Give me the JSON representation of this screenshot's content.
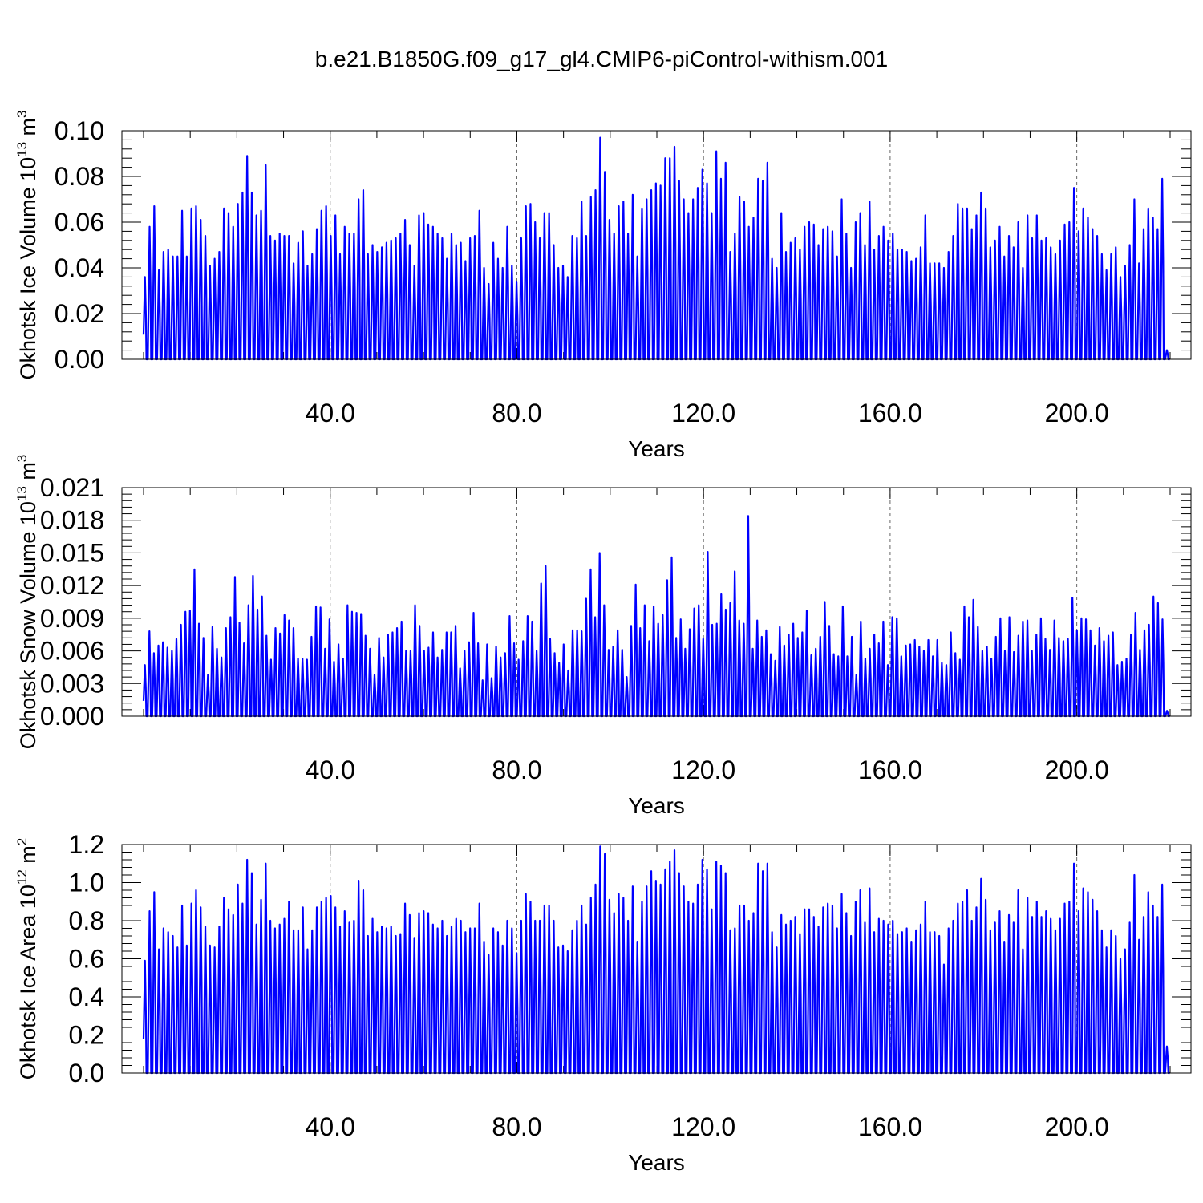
{
  "title": "b.e21.B1850G.f09_g17_gl4.CMIP6-piControl-withism.001",
  "line_color": "#0000ff",
  "chart_data": [
    {
      "type": "line",
      "title": "",
      "ylabel": "Okhotsk Ice Volume 10",
      "ylabel_exp": "13",
      "ylabel_unit": "m",
      "ylabel_unit_exp": "3",
      "xlabel": "Years",
      "xlim": [
        0,
        220
      ],
      "ylim": [
        0,
        0.1
      ],
      "xticks": [
        40,
        80,
        120,
        160,
        200
      ],
      "xtick_labels": [
        "40.0",
        "80.0",
        "120.0",
        "160.0",
        "200.0"
      ],
      "yticks": [
        0,
        0.02,
        0.04,
        0.06,
        0.08,
        0.1
      ],
      "ytick_labels": [
        "0.00",
        "0.02",
        "0.04",
        "0.06",
        "0.08",
        "0.10"
      ],
      "grid": "vertical dashed at labeled years",
      "annual_min": 0,
      "annual_maxima": [
        0.036,
        0.058,
        0.067,
        0.039,
        0.047,
        0.048,
        0.045,
        0.045,
        0.065,
        0.045,
        0.066,
        0.067,
        0.061,
        0.054,
        0.041,
        0.044,
        0.047,
        0.066,
        0.064,
        0.058,
        0.068,
        0.073,
        0.089,
        0.073,
        0.063,
        0.065,
        0.085,
        0.054,
        0.052,
        0.055,
        0.054,
        0.054,
        0.042,
        0.051,
        0.056,
        0.041,
        0.046,
        0.057,
        0.065,
        0.067,
        0.054,
        0.063,
        0.046,
        0.058,
        0.055,
        0.055,
        0.07,
        0.074,
        0.046,
        0.05,
        0.047,
        0.049,
        0.051,
        0.052,
        0.053,
        0.055,
        0.061,
        0.05,
        0.041,
        0.063,
        0.064,
        0.059,
        0.058,
        0.055,
        0.053,
        0.044,
        0.055,
        0.05,
        0.051,
        0.043,
        0.053,
        0.054,
        0.065,
        0.04,
        0.033,
        0.051,
        0.044,
        0.04,
        0.058,
        0.041,
        0.034,
        0.053,
        0.067,
        0.068,
        0.06,
        0.053,
        0.064,
        0.064,
        0.05,
        0.04,
        0.041,
        0.036,
        0.054,
        0.053,
        0.069,
        0.054,
        0.071,
        0.074,
        0.097,
        0.082,
        0.061,
        0.055,
        0.067,
        0.069,
        0.055,
        0.072,
        0.045,
        0.066,
        0.07,
        0.074,
        0.077,
        0.076,
        0.088,
        0.088,
        0.093,
        0.078,
        0.07,
        0.064,
        0.07,
        0.075,
        0.083,
        0.077,
        0.064,
        0.091,
        0.079,
        0.086,
        0.047,
        0.055,
        0.071,
        0.069,
        0.058,
        0.062,
        0.079,
        0.078,
        0.086,
        0.044,
        0.04,
        0.064,
        0.047,
        0.051,
        0.053,
        0.048,
        0.058,
        0.06,
        0.059,
        0.05,
        0.057,
        0.058,
        0.056,
        0.045,
        0.07,
        0.055,
        0.04,
        0.06,
        0.064,
        0.05,
        0.069,
        0.048,
        0.054,
        0.058,
        0.052,
        0.055,
        0.048,
        0.048,
        0.047,
        0.043,
        0.044,
        0.049,
        0.063,
        0.042,
        0.042,
        0.042,
        0.04,
        0.047,
        0.054,
        0.068,
        0.066,
        0.066,
        0.057,
        0.063,
        0.073,
        0.066,
        0.049,
        0.052,
        0.058,
        0.045,
        0.054,
        0.049,
        0.06,
        0.04,
        0.063,
        0.053,
        0.063,
        0.052,
        0.053,
        0.049,
        0.046,
        0.052,
        0.059,
        0.06,
        0.075,
        0.056,
        0.066,
        0.062,
        0.057,
        0.054,
        0.046,
        0.039,
        0.046,
        0.049,
        0.036,
        0.041,
        0.05,
        0.07,
        0.042,
        0.057,
        0.066,
        0.062,
        0.057,
        0.079,
        0.004
      ]
    },
    {
      "type": "line",
      "title": "",
      "ylabel": "Okhotsk Snow Volume 10",
      "ylabel_exp": "13",
      "ylabel_unit": "m",
      "ylabel_unit_exp": "3",
      "xlabel": "Years",
      "xlim": [
        0,
        220
      ],
      "ylim": [
        0,
        0.021
      ],
      "xticks": [
        40,
        80,
        120,
        160,
        200
      ],
      "xtick_labels": [
        "40.0",
        "80.0",
        "120.0",
        "160.0",
        "200.0"
      ],
      "yticks": [
        0,
        0.003,
        0.006,
        0.009,
        0.012,
        0.015,
        0.018,
        0.021
      ],
      "ytick_labels": [
        "0.000",
        "0.003",
        "0.006",
        "0.009",
        "0.012",
        "0.015",
        "0.018",
        "0.021"
      ],
      "grid": "vertical dashed at labeled years",
      "annual_min": 0,
      "annual_maxima": [
        0.0047,
        0.0078,
        0.0058,
        0.0065,
        0.0068,
        0.0063,
        0.006,
        0.0071,
        0.0084,
        0.0096,
        0.0097,
        0.0135,
        0.0085,
        0.0072,
        0.0038,
        0.0082,
        0.0062,
        0.0054,
        0.0081,
        0.0091,
        0.0128,
        0.0086,
        0.0067,
        0.0102,
        0.0129,
        0.0098,
        0.011,
        0.0074,
        0.0052,
        0.0081,
        0.0076,
        0.0093,
        0.0088,
        0.0081,
        0.0053,
        0.0053,
        0.0052,
        0.0073,
        0.0101,
        0.01,
        0.0062,
        0.0089,
        0.005,
        0.0066,
        0.0053,
        0.0102,
        0.0096,
        0.0095,
        0.0094,
        0.0074,
        0.0062,
        0.0038,
        0.0072,
        0.0054,
        0.0075,
        0.0077,
        0.0081,
        0.0087,
        0.006,
        0.006,
        0.0102,
        0.0083,
        0.006,
        0.0063,
        0.0077,
        0.0054,
        0.0061,
        0.0077,
        0.0077,
        0.0083,
        0.0044,
        0.006,
        0.0068,
        0.0095,
        0.0067,
        0.0033,
        0.0066,
        0.0035,
        0.0064,
        0.0054,
        0.0058,
        0.0092,
        0.0067,
        0.0052,
        0.0069,
        0.0092,
        0.0087,
        0.006,
        0.0122,
        0.0138,
        0.0071,
        0.0058,
        0.0049,
        0.0066,
        0.0042,
        0.0079,
        0.0079,
        0.0078,
        0.0108,
        0.0135,
        0.0091,
        0.015,
        0.0102,
        0.0061,
        0.0064,
        0.0079,
        0.0061,
        0.0036,
        0.0083,
        0.0121,
        0.0081,
        0.0102,
        0.0069,
        0.0101,
        0.0085,
        0.0093,
        0.0125,
        0.0146,
        0.0072,
        0.0089,
        0.0062,
        0.008,
        0.0099,
        0.0102,
        0.0071,
        0.0151,
        0.0084,
        0.0085,
        0.0112,
        0.0098,
        0.0104,
        0.0133,
        0.0088,
        0.0085,
        0.0184,
        0.0062,
        0.0088,
        0.0073,
        0.0079,
        0.0057,
        0.0051,
        0.0082,
        0.0065,
        0.0075,
        0.0085,
        0.0072,
        0.0077,
        0.0097,
        0.0056,
        0.0062,
        0.0073,
        0.0105,
        0.0083,
        0.0057,
        0.0055,
        0.0101,
        0.0055,
        0.0073,
        0.0038,
        0.0087,
        0.0053,
        0.0062,
        0.0075,
        0.0067,
        0.0087,
        0.0047,
        0.0091,
        0.009,
        0.0055,
        0.0065,
        0.0066,
        0.007,
        0.0064,
        0.006,
        0.007,
        0.0055,
        0.007,
        0.0049,
        0.0047,
        0.0077,
        0.0058,
        0.0052,
        0.0101,
        0.0091,
        0.0107,
        0.0082,
        0.006,
        0.0064,
        0.0053,
        0.0073,
        0.009,
        0.006,
        0.0091,
        0.0059,
        0.0074,
        0.0087,
        0.0088,
        0.006,
        0.0075,
        0.009,
        0.0071,
        0.0061,
        0.0088,
        0.0072,
        0.0069,
        0.0071,
        0.0109,
        0.0079,
        0.009,
        0.0089,
        0.0079,
        0.0065,
        0.0081,
        0.0069,
        0.0074,
        0.0077,
        0.0047,
        0.005,
        0.0053,
        0.0075,
        0.0095,
        0.0061,
        0.0079,
        0.0084,
        0.011,
        0.0104,
        0.0089,
        0.0005
      ]
    },
    {
      "type": "line",
      "title": "",
      "ylabel": "Okhotsk Ice Area 10",
      "ylabel_exp": "12",
      "ylabel_unit": "m",
      "ylabel_unit_exp": "2",
      "xlabel": "Years",
      "xlim": [
        0,
        220
      ],
      "ylim": [
        0,
        1.2
      ],
      "xticks": [
        40,
        80,
        120,
        160,
        200
      ],
      "xtick_labels": [
        "40.0",
        "80.0",
        "120.0",
        "160.0",
        "200.0"
      ],
      "yticks": [
        0,
        0.2,
        0.4,
        0.6,
        0.8,
        1.0,
        1.2
      ],
      "ytick_labels": [
        "0.0",
        "0.2",
        "0.4",
        "0.6",
        "0.8",
        "1.0",
        "1.2"
      ],
      "grid": "vertical dashed at labeled years",
      "annual_min": 0,
      "annual_maxima": [
        0.59,
        0.85,
        0.95,
        0.65,
        0.76,
        0.74,
        0.72,
        0.66,
        0.88,
        0.67,
        0.89,
        0.96,
        0.87,
        0.77,
        0.67,
        0.66,
        0.77,
        0.92,
        0.86,
        0.83,
        0.99,
        0.89,
        1.12,
        1.05,
        0.78,
        0.91,
        1.1,
        0.8,
        0.76,
        0.78,
        0.81,
        0.9,
        0.75,
        0.75,
        0.87,
        0.65,
        0.75,
        0.87,
        0.9,
        0.92,
        0.93,
        0.87,
        0.77,
        0.85,
        0.79,
        0.8,
        1.01,
        0.96,
        0.72,
        0.81,
        0.74,
        0.77,
        0.76,
        0.77,
        0.72,
        0.73,
        0.89,
        0.83,
        0.71,
        0.84,
        0.85,
        0.84,
        0.78,
        0.76,
        0.8,
        0.72,
        0.77,
        0.81,
        0.8,
        0.74,
        0.76,
        0.76,
        0.89,
        0.69,
        0.62,
        0.76,
        0.74,
        0.67,
        0.8,
        0.76,
        0.63,
        0.8,
        0.94,
        0.9,
        0.8,
        0.8,
        0.88,
        0.88,
        0.8,
        0.66,
        0.67,
        0.64,
        0.75,
        0.8,
        0.88,
        0.78,
        0.92,
        0.99,
        1.19,
        1.15,
        0.91,
        0.84,
        0.94,
        0.92,
        0.8,
        0.98,
        0.69,
        0.9,
        0.98,
        1.06,
        1.01,
        0.99,
        1.07,
        1.11,
        1.17,
        1.05,
        0.98,
        0.9,
        0.89,
        0.99,
        1.12,
        1.07,
        0.86,
        1.11,
        1.09,
        1.05,
        0.75,
        0.76,
        0.88,
        0.88,
        0.8,
        0.84,
        1.1,
        1.06,
        1.1,
        0.74,
        0.66,
        0.83,
        0.78,
        0.8,
        0.82,
        0.73,
        0.86,
        0.86,
        0.82,
        0.77,
        0.87,
        0.89,
        0.88,
        0.76,
        0.94,
        0.84,
        0.72,
        0.9,
        0.96,
        0.79,
        0.97,
        0.74,
        0.81,
        0.8,
        0.78,
        0.8,
        0.73,
        0.74,
        0.76,
        0.69,
        0.75,
        0.78,
        0.9,
        0.74,
        0.74,
        0.72,
        0.57,
        0.76,
        0.8,
        0.89,
        0.9,
        0.96,
        0.8,
        0.87,
        1.02,
        0.91,
        0.75,
        0.79,
        0.85,
        0.69,
        0.83,
        0.79,
        0.96,
        0.65,
        0.92,
        0.82,
        0.9,
        0.82,
        0.85,
        0.81,
        0.75,
        0.81,
        0.89,
        0.9,
        1.1,
        0.85,
        0.97,
        0.95,
        0.91,
        0.85,
        0.75,
        0.66,
        0.75,
        0.72,
        0.6,
        0.65,
        0.79,
        1.04,
        0.7,
        0.82,
        0.95,
        0.88,
        0.82,
        0.99,
        0.14
      ]
    }
  ]
}
